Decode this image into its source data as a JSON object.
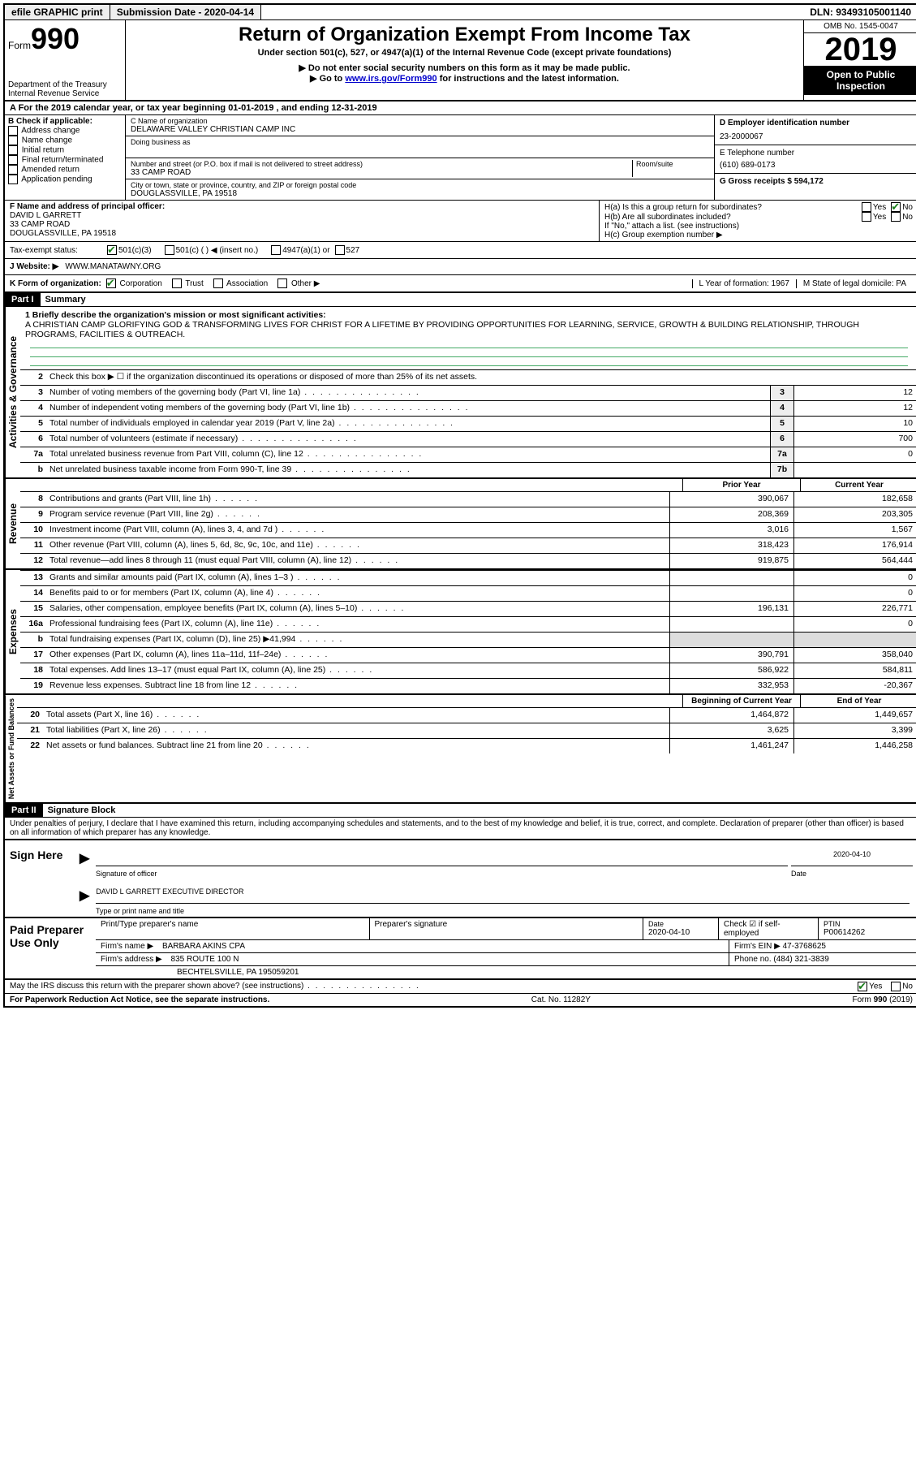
{
  "topbar": {
    "efile": "efile GRAPHIC print",
    "submission_label": "Submission Date - 2020-04-14",
    "dln": "DLN: 93493105001140"
  },
  "header": {
    "form_label": "Form",
    "form_number": "990",
    "dept": "Department of the Treasury",
    "irs": "Internal Revenue Service",
    "title": "Return of Organization Exempt From Income Tax",
    "subtitle": "Under section 501(c), 527, or 4947(a)(1) of the Internal Revenue Code (except private foundations)",
    "note1": "▶ Do not enter social security numbers on this form as it may be made public.",
    "note2_pre": "▶ Go to ",
    "note2_link": "www.irs.gov/Form990",
    "note2_post": " for instructions and the latest information.",
    "omb": "OMB No. 1545-0047",
    "year": "2019",
    "open_public": "Open to Public Inspection"
  },
  "rowA": "A For the 2019 calendar year, or tax year beginning 01-01-2019  , and ending 12-31-2019",
  "boxB": {
    "header": "B Check if applicable:",
    "items": [
      "Address change",
      "Name change",
      "Initial return",
      "Final return/terminated",
      "Amended return",
      "Application pending"
    ]
  },
  "boxC": {
    "name_label": "C Name of organization",
    "name": "DELAWARE VALLEY CHRISTIAN CAMP INC",
    "dba_label": "Doing business as",
    "addr_label": "Number and street (or P.O. box if mail is not delivered to street address)",
    "room_label": "Room/suite",
    "addr": "33 CAMP ROAD",
    "city_label": "City or town, state or province, country, and ZIP or foreign postal code",
    "city": "DOUGLASSVILLE, PA  19518"
  },
  "boxD": {
    "ein_label": "D Employer identification number",
    "ein": "23-2000067",
    "phone_label": "E Telephone number",
    "phone": "(610) 689-0173",
    "gross_label": "G Gross receipts $ 594,172"
  },
  "boxF": {
    "label": "F  Name and address of principal officer:",
    "name": "DAVID L GARRETT",
    "addr1": "33 CAMP ROAD",
    "addr2": "DOUGLASSVILLE, PA  19518"
  },
  "boxH": {
    "ha": "H(a)  Is this a group return for subordinates?",
    "hb": "H(b)  Are all subordinates included?",
    "hb_note": "If \"No,\" attach a list. (see instructions)",
    "hc": "H(c)  Group exemption number ▶",
    "yes": "Yes",
    "no": "No"
  },
  "taxStatus": {
    "label": "Tax-exempt status:",
    "opt1": "501(c)(3)",
    "opt2": "501(c) (  ) ◀ (insert no.)",
    "opt3": "4947(a)(1) or",
    "opt4": "527"
  },
  "boxJ": {
    "label": "J   Website: ▶",
    "value": "WWW.MANATAWNY.ORG"
  },
  "boxK": {
    "label": "K Form of organization:",
    "opts": [
      "Corporation",
      "Trust",
      "Association",
      "Other ▶"
    ],
    "L": "L Year of formation: 1967",
    "M": "M State of legal domicile: PA"
  },
  "part1": {
    "header": "Part I",
    "title": "Summary",
    "line1_label": "1 Briefly describe the organization's mission or most significant activities:",
    "mission": "A CHRISTIAN CAMP GLORIFYING GOD & TRANSFORMING LIVES FOR CHRIST FOR A LIFETIME BY PROVIDING OPPORTUNITIES FOR LEARNING, SERVICE, GROWTH & BUILDING RELATIONSHIP, THROUGH PROGRAMS, FACILITIES & OUTREACH.",
    "line2": "Check this box ▶ ☐  if the organization discontinued its operations or disposed of more than 25% of its net assets.",
    "gov": {
      "label": "Activities & Governance",
      "rows": [
        {
          "n": "3",
          "d": "Number of voting members of the governing body (Part VI, line 1a)",
          "box": "3",
          "v": "12"
        },
        {
          "n": "4",
          "d": "Number of independent voting members of the governing body (Part VI, line 1b)",
          "box": "4",
          "v": "12"
        },
        {
          "n": "5",
          "d": "Total number of individuals employed in calendar year 2019 (Part V, line 2a)",
          "box": "5",
          "v": "10"
        },
        {
          "n": "6",
          "d": "Total number of volunteers (estimate if necessary)",
          "box": "6",
          "v": "700"
        },
        {
          "n": "7a",
          "d": "Total unrelated business revenue from Part VIII, column (C), line 12",
          "box": "7a",
          "v": "0"
        },
        {
          "n": "b",
          "d": "Net unrelated business taxable income from Form 990-T, line 39",
          "box": "7b",
          "v": ""
        }
      ]
    },
    "prior_label": "Prior Year",
    "current_label": "Current Year",
    "revenue": {
      "label": "Revenue",
      "rows": [
        {
          "n": "8",
          "d": "Contributions and grants (Part VIII, line 1h)",
          "p": "390,067",
          "c": "182,658"
        },
        {
          "n": "9",
          "d": "Program service revenue (Part VIII, line 2g)",
          "p": "208,369",
          "c": "203,305"
        },
        {
          "n": "10",
          "d": "Investment income (Part VIII, column (A), lines 3, 4, and 7d )",
          "p": "3,016",
          "c": "1,567"
        },
        {
          "n": "11",
          "d": "Other revenue (Part VIII, column (A), lines 5, 6d, 8c, 9c, 10c, and 11e)",
          "p": "318,423",
          "c": "176,914"
        },
        {
          "n": "12",
          "d": "Total revenue—add lines 8 through 11 (must equal Part VIII, column (A), line 12)",
          "p": "919,875",
          "c": "564,444"
        }
      ]
    },
    "expenses": {
      "label": "Expenses",
      "rows": [
        {
          "n": "13",
          "d": "Grants and similar amounts paid (Part IX, column (A), lines 1–3 )",
          "p": "",
          "c": "0"
        },
        {
          "n": "14",
          "d": "Benefits paid to or for members (Part IX, column (A), line 4)",
          "p": "",
          "c": "0"
        },
        {
          "n": "15",
          "d": "Salaries, other compensation, employee benefits (Part IX, column (A), lines 5–10)",
          "p": "196,131",
          "c": "226,771"
        },
        {
          "n": "16a",
          "d": "Professional fundraising fees (Part IX, column (A), line 11e)",
          "p": "",
          "c": "0"
        },
        {
          "n": "b",
          "d": "Total fundraising expenses (Part IX, column (D), line 25) ▶41,994",
          "p": "shade",
          "c": "shade"
        },
        {
          "n": "17",
          "d": "Other expenses (Part IX, column (A), lines 11a–11d, 11f–24e)",
          "p": "390,791",
          "c": "358,040"
        },
        {
          "n": "18",
          "d": "Total expenses. Add lines 13–17 (must equal Part IX, column (A), line 25)",
          "p": "586,922",
          "c": "584,811"
        },
        {
          "n": "19",
          "d": "Revenue less expenses. Subtract line 18 from line 12",
          "p": "332,953",
          "c": "-20,367"
        }
      ]
    },
    "begin_label": "Beginning of Current Year",
    "end_label": "End of Year",
    "netassets": {
      "label": "Net Assets or Fund Balances",
      "rows": [
        {
          "n": "20",
          "d": "Total assets (Part X, line 16)",
          "p": "1,464,872",
          "c": "1,449,657"
        },
        {
          "n": "21",
          "d": "Total liabilities (Part X, line 26)",
          "p": "3,625",
          "c": "3,399"
        },
        {
          "n": "22",
          "d": "Net assets or fund balances. Subtract line 21 from line 20",
          "p": "1,461,247",
          "c": "1,446,258"
        }
      ]
    }
  },
  "part2": {
    "header": "Part II",
    "title": "Signature Block",
    "declaration": "Under penalties of perjury, I declare that I have examined this return, including accompanying schedules and statements, and to the best of my knowledge and belief, it is true, correct, and complete. Declaration of preparer (other than officer) is based on all information of which preparer has any knowledge.",
    "sign_here": "Sign Here",
    "sig_officer": "Signature of officer",
    "sig_date": "2020-04-10",
    "date_label": "Date",
    "officer_name": "DAVID L GARRETT  EXECUTIVE DIRECTOR",
    "type_name": "Type or print name and title",
    "paid": "Paid Preparer Use Only",
    "prep_name_label": "Print/Type preparer's name",
    "prep_sig_label": "Preparer's signature",
    "prep_date": "2020-04-10",
    "check_self": "Check ☑ if self-employed",
    "ptin_label": "PTIN",
    "ptin": "P00614262",
    "firm_name_label": "Firm's name    ▶",
    "firm_name": "BARBARA AKINS CPA",
    "firm_ein_label": "Firm's EIN ▶",
    "firm_ein": "47-3768625",
    "firm_addr_label": "Firm's address ▶",
    "firm_addr1": "835 ROUTE 100 N",
    "firm_addr2": "BECHTELSVILLE, PA  195059201",
    "firm_phone_label": "Phone no.",
    "firm_phone": "(484) 321-3839",
    "discuss": "May the IRS discuss this return with the preparer shown above? (see instructions)"
  },
  "footer": {
    "left": "For Paperwork Reduction Act Notice, see the separate instructions.",
    "mid": "Cat. No. 11282Y",
    "right": "Form 990 (2019)"
  }
}
